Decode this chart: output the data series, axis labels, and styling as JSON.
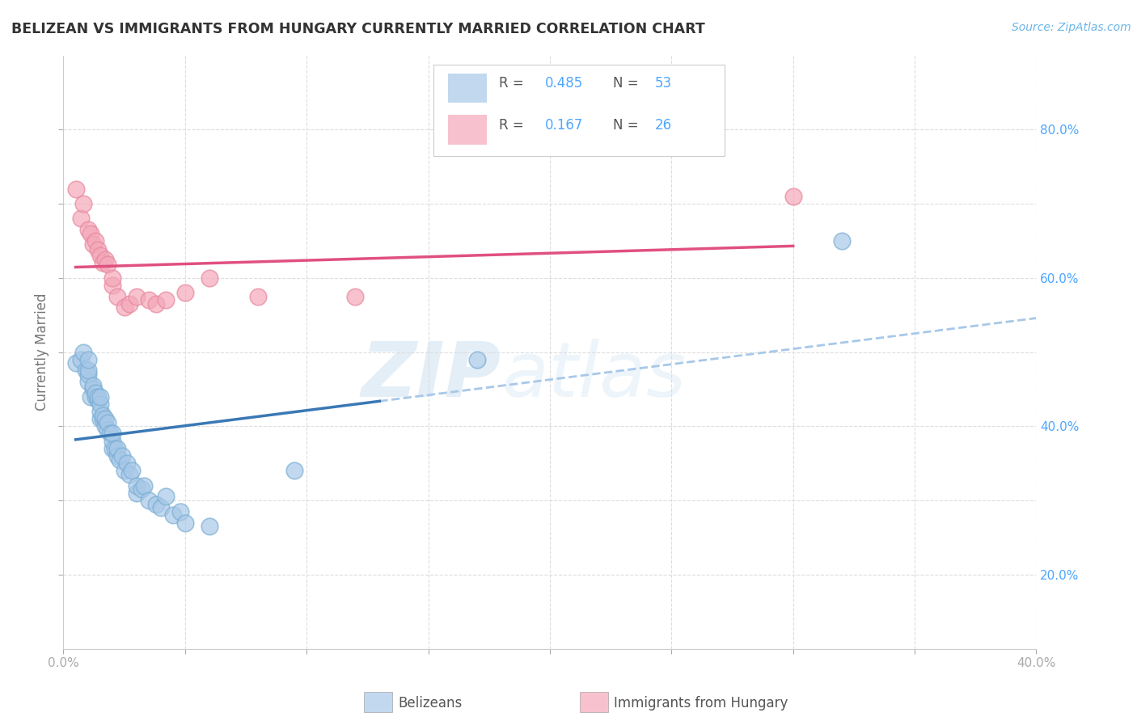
{
  "title": "BELIZEAN VS IMMIGRANTS FROM HUNGARY CURRENTLY MARRIED CORRELATION CHART",
  "source_text": "Source: ZipAtlas.com",
  "ylabel": "Currently Married",
  "xlim": [
    0.0,
    0.4
  ],
  "ylim": [
    0.1,
    0.9
  ],
  "x_ticks": [
    0.0,
    0.05,
    0.1,
    0.15,
    0.2,
    0.25,
    0.3,
    0.35,
    0.4
  ],
  "y_ticks": [
    0.2,
    0.3,
    0.4,
    0.5,
    0.6,
    0.7,
    0.8
  ],
  "y_tick_labels_right": [
    "20.0%",
    "",
    "40.0%",
    "",
    "60.0%",
    "",
    "80.0%"
  ],
  "blue_color": "#a8c8e8",
  "pink_color": "#f4a8b8",
  "blue_line_color": "#3a78b5",
  "pink_line_color": "#e05080",
  "dashed_line_color": "#a8c8e8",
  "watermark_zip": "ZIP",
  "watermark_atlas": "atlas",
  "belizean_x": [
    0.005,
    0.007,
    0.008,
    0.009,
    0.01,
    0.01,
    0.01,
    0.01,
    0.011,
    0.012,
    0.012,
    0.013,
    0.013,
    0.014,
    0.014,
    0.015,
    0.015,
    0.015,
    0.015,
    0.016,
    0.016,
    0.017,
    0.017,
    0.018,
    0.018,
    0.019,
    0.02,
    0.02,
    0.02,
    0.021,
    0.022,
    0.022,
    0.023,
    0.024,
    0.025,
    0.026,
    0.027,
    0.028,
    0.03,
    0.03,
    0.032,
    0.033,
    0.035,
    0.038,
    0.04,
    0.042,
    0.045,
    0.048,
    0.05,
    0.06,
    0.095,
    0.17,
    0.32
  ],
  "belizean_y": [
    0.485,
    0.49,
    0.5,
    0.475,
    0.46,
    0.47,
    0.475,
    0.49,
    0.44,
    0.45,
    0.455,
    0.44,
    0.445,
    0.435,
    0.44,
    0.41,
    0.42,
    0.43,
    0.44,
    0.41,
    0.415,
    0.4,
    0.41,
    0.395,
    0.405,
    0.39,
    0.37,
    0.38,
    0.39,
    0.37,
    0.36,
    0.37,
    0.355,
    0.36,
    0.34,
    0.35,
    0.335,
    0.34,
    0.31,
    0.32,
    0.315,
    0.32,
    0.3,
    0.295,
    0.29,
    0.305,
    0.28,
    0.285,
    0.27,
    0.265,
    0.34,
    0.49,
    0.65
  ],
  "hungary_x": [
    0.005,
    0.007,
    0.008,
    0.01,
    0.011,
    0.012,
    0.013,
    0.014,
    0.015,
    0.016,
    0.017,
    0.018,
    0.02,
    0.02,
    0.022,
    0.025,
    0.027,
    0.03,
    0.035,
    0.038,
    0.042,
    0.05,
    0.06,
    0.08,
    0.12,
    0.3
  ],
  "hungary_y": [
    0.72,
    0.68,
    0.7,
    0.665,
    0.66,
    0.645,
    0.65,
    0.638,
    0.63,
    0.62,
    0.625,
    0.618,
    0.59,
    0.6,
    0.575,
    0.56,
    0.565,
    0.575,
    0.57,
    0.565,
    0.57,
    0.58,
    0.6,
    0.575,
    0.575,
    0.71
  ],
  "background_color": "#ffffff",
  "grid_color": "#dddddd"
}
